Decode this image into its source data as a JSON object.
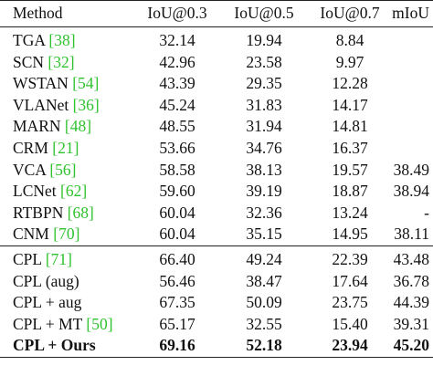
{
  "header": {
    "method": "Method",
    "iou03": "IoU@0.3",
    "iou05": "IoU@0.5",
    "iou07": "IoU@0.7",
    "miou": "mIoU"
  },
  "group1": [
    {
      "name": "TGA",
      "ref": "[38]",
      "iou03": "32.14",
      "iou05": "19.94",
      "iou07": "8.84",
      "miou": ""
    },
    {
      "name": "SCN",
      "ref": "[32]",
      "iou03": "42.96",
      "iou05": "23.58",
      "iou07": "9.97",
      "miou": ""
    },
    {
      "name": "WSTAN",
      "ref": "[54]",
      "iou03": "43.39",
      "iou05": "29.35",
      "iou07": "12.28",
      "miou": ""
    },
    {
      "name": "VLANet",
      "ref": "[36]",
      "iou03": "45.24",
      "iou05": "31.83",
      "iou07": "14.17",
      "miou": ""
    },
    {
      "name": "MARN",
      "ref": "[48]",
      "iou03": "48.55",
      "iou05": "31.94",
      "iou07": "14.81",
      "miou": ""
    },
    {
      "name": "CRM",
      "ref": "[21]",
      "iou03": "53.66",
      "iou05": "34.76",
      "iou07": "16.37",
      "miou": ""
    },
    {
      "name": "VCA",
      "ref": "[56]",
      "iou03": "58.58",
      "iou05": "38.13",
      "iou07": "19.57",
      "miou": "38.49"
    },
    {
      "name": "LCNet",
      "ref": "[62]",
      "iou03": "59.60",
      "iou05": "39.19",
      "iou07": "18.87",
      "miou": "38.94"
    },
    {
      "name": "RTBPN",
      "ref": "[68]",
      "iou03": "60.04",
      "iou05": "32.36",
      "iou07": "13.24",
      "miou": "-"
    },
    {
      "name": "CNM",
      "ref": "[70]",
      "iou03": "60.04",
      "iou05": "35.15",
      "iou07": "14.95",
      "miou": "38.11"
    }
  ],
  "group2": [
    {
      "name": "CPL",
      "ref": "[71]",
      "iou03": "66.40",
      "iou05": "49.24",
      "iou07": "22.39",
      "miou": "43.48"
    },
    {
      "name": "CPL (aug)",
      "ref": "",
      "iou03": "56.46",
      "iou05": "38.47",
      "iou07": "17.64",
      "miou": "36.78"
    },
    {
      "name": "CPL + aug",
      "ref": "",
      "iou03": "67.35",
      "iou05": "50.09",
      "iou07": "23.75",
      "miou": "44.39"
    },
    {
      "name": "CPL + MT",
      "ref": "[50]",
      "iou03": "65.17",
      "iou05": "32.55",
      "iou07": "15.40",
      "miou": "39.31"
    },
    {
      "name": "CPL + Ours",
      "ref": "",
      "iou03": "69.16",
      "iou05": "52.18",
      "iou07": "23.94",
      "miou": "45.20",
      "bold": true
    }
  ],
  "colors": {
    "reference_link": "#2fc22f",
    "text": "#111111"
  }
}
